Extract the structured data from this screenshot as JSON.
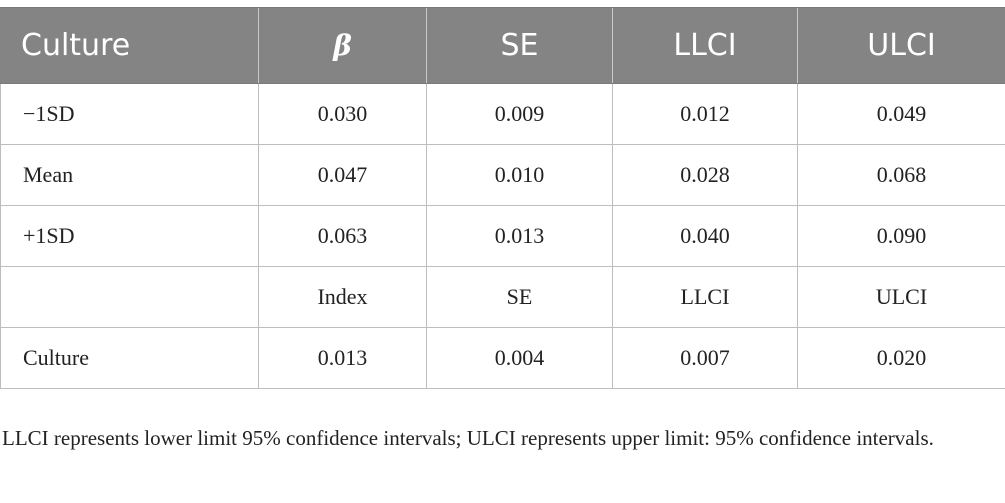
{
  "header": {
    "col_culture": "Culture",
    "col_beta": "β",
    "col_se": "SE",
    "col_llci": "LLCI",
    "col_ulci": "ULCI"
  },
  "rows": [
    {
      "label": "−1SD",
      "beta": "0.030",
      "se": "0.009",
      "llci": "0.012",
      "ulci": "0.049"
    },
    {
      "label": "Mean",
      "beta": "0.047",
      "se": "0.010",
      "llci": "0.028",
      "ulci": "0.068"
    },
    {
      "label": "+1SD",
      "beta": "0.063",
      "se": "0.013",
      "llci": "0.040",
      "ulci": "0.090"
    },
    {
      "label": "",
      "beta": "Index",
      "se": "SE",
      "llci": "LLCI",
      "ulci": "ULCI"
    },
    {
      "label": "Culture",
      "beta": "0.013",
      "se": "0.004",
      "llci": "0.007",
      "ulci": "0.020"
    }
  ],
  "footnote": "LLCI represents lower limit 95% confidence intervals; ULCI represents upper limit: 95% confidence intervals."
}
